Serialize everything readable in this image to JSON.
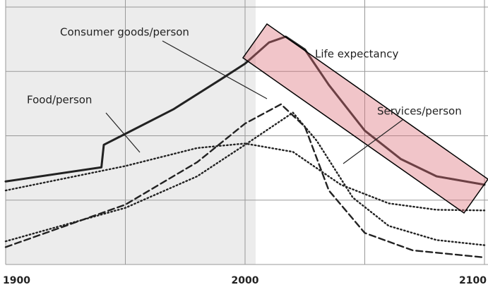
{
  "chart_data": {
    "type": "line",
    "xlim": [
      1900,
      2100
    ],
    "xticks": [
      1900,
      2000,
      2100
    ],
    "xgrid": [
      1950,
      2050
    ],
    "ylim": [
      0,
      4
    ],
    "yticks": [
      0,
      1,
      2,
      3,
      4
    ],
    "grid": true,
    "series": [
      {
        "name": "Life expectancy",
        "color": "#222222",
        "style": "solid",
        "x": [
          1900,
          1940,
          1941,
          1950,
          1970,
          1990,
          2000,
          2010,
          2017,
          2025,
          2035,
          2050,
          2065,
          2080,
          2100
        ],
        "values": [
          1.29,
          1.51,
          1.86,
          2.03,
          2.41,
          2.88,
          3.12,
          3.45,
          3.54,
          3.34,
          2.79,
          2.08,
          1.64,
          1.37,
          1.24
        ]
      },
      {
        "name": "Food/person",
        "color": "#222222",
        "style": "dotted",
        "x": [
          1900,
          1950,
          1980,
          2000,
          2020,
          2040,
          2060,
          2080,
          2100
        ],
        "values": [
          1.15,
          1.53,
          1.81,
          1.88,
          1.75,
          1.24,
          0.95,
          0.85,
          0.84
        ]
      },
      {
        "name": "Consumer goods/person",
        "color": "#222222",
        "style": "dashed",
        "x": [
          1900,
          1950,
          1980,
          2000,
          2015,
          2025,
          2035,
          2050,
          2070,
          2100
        ],
        "values": [
          0.27,
          0.93,
          1.59,
          2.19,
          2.49,
          2.14,
          1.15,
          0.49,
          0.22,
          0.11
        ]
      },
      {
        "name": "Services/person",
        "color": "#222222",
        "style": "dotted",
        "x": [
          1900,
          1950,
          1980,
          2000,
          2020,
          2030,
          2045,
          2060,
          2080,
          2100
        ],
        "values": [
          0.36,
          0.88,
          1.37,
          1.86,
          2.36,
          1.92,
          1.04,
          0.6,
          0.38,
          0.3
        ]
      }
    ]
  }
}
